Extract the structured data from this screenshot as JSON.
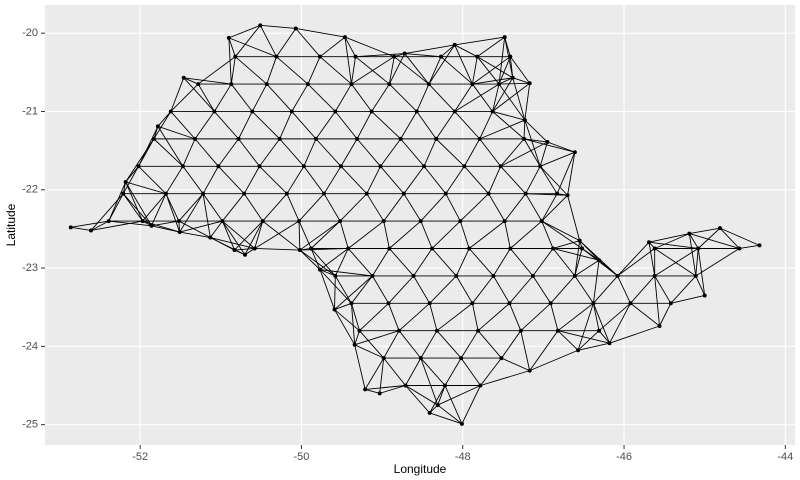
{
  "chart_data": {
    "type": "network",
    "x_label": "Longitude",
    "y_label": "Latitude",
    "xlim": [
      -53.18,
      -43.88
    ],
    "ylim": [
      -25.26,
      -19.64
    ],
    "xticks": [
      -52,
      -50,
      -48,
      -46,
      -44
    ],
    "yticks": [
      -25,
      -24,
      -23,
      -22,
      -21,
      -20
    ],
    "grid": true,
    "color": "#000000",
    "x": [
      -52.86,
      -52.61,
      -52.39,
      -52.18,
      -51.78,
      -51.46,
      -50.9,
      -50.51,
      -50.07,
      -49.46,
      -48.72,
      -48.1,
      -47.48,
      -47.38,
      -47.17,
      -47.23,
      -46.95,
      -46.61,
      -46.7,
      -46.55,
      -46.31,
      -45.69,
      -45.19,
      -44.81,
      -44.32,
      -44.57,
      -45.0,
      -45.56,
      -46.18,
      -46.57,
      -47.17,
      -48.01,
      -48.41,
      -49.03,
      -49.21,
      -49.34,
      -49.59,
      -49.77,
      -50.02,
      -50.7,
      -50.83,
      -51.13,
      -51.51,
      -51.86,
      -50.82,
      -50.31,
      -49.77,
      -49.33,
      -48.85,
      -48.27,
      -47.82,
      -47.41,
      -51.28,
      -50.87,
      -50.43,
      -49.92,
      -49.38,
      -48.91,
      -48.42,
      -47.88,
      -47.55,
      -51.62,
      -51.08,
      -50.61,
      -50.12,
      -49.58,
      -49.13,
      -48.57,
      -48.1,
      -47.63,
      -51.83,
      -51.32,
      -50.78,
      -50.27,
      -49.82,
      -49.31,
      -48.77,
      -48.33,
      -47.79,
      -47.24,
      -52.02,
      -51.47,
      -51.03,
      -50.52,
      -49.97,
      -49.51,
      -49.02,
      -48.48,
      -47.98,
      -47.53,
      -47.04,
      -52.21,
      -51.68,
      -51.22,
      -50.71,
      -50.18,
      -49.72,
      -49.19,
      -48.73,
      -48.21,
      -47.68,
      -47.22,
      -46.83,
      -51.97,
      -51.52,
      -50.98,
      -50.48,
      -50.03,
      -49.52,
      -48.98,
      -48.52,
      -48.03,
      -47.48,
      -47.02,
      -50.58,
      -49.88,
      -49.42,
      -48.91,
      -48.38,
      -47.92,
      -47.41,
      -46.88,
      -46.52,
      -45.62,
      -45.08,
      -49.58,
      -49.12,
      -48.61,
      -48.08,
      -47.62,
      -47.13,
      -46.61,
      -46.08,
      -45.62,
      -45.11,
      -49.38,
      -48.92,
      -48.41,
      -47.88,
      -47.42,
      -46.91,
      -46.38,
      -45.92,
      -45.42,
      -49.28,
      -48.79,
      -48.32,
      -47.81,
      -47.28,
      -46.82,
      -46.31,
      -48.98,
      -48.52,
      -48.02,
      -47.52,
      -48.71,
      -48.22,
      -47.78,
      -48.31
    ],
    "y": [
      -22.48,
      -22.52,
      -22.4,
      -21.9,
      -21.19,
      -20.57,
      -20.06,
      -19.9,
      -19.94,
      -20.05,
      -20.26,
      -20.15,
      -20.05,
      -20.57,
      -20.64,
      -21.11,
      -21.39,
      -21.52,
      -22.07,
      -22.65,
      -22.9,
      -22.67,
      -22.56,
      -22.49,
      -22.71,
      -22.75,
      -23.35,
      -23.74,
      -23.96,
      -24.05,
      -24.31,
      -24.99,
      -24.85,
      -24.6,
      -24.55,
      -23.98,
      -23.53,
      -23.02,
      -22.77,
      -22.83,
      -22.77,
      -22.61,
      -22.54,
      -22.46,
      -20.3,
      -20.3,
      -20.3,
      -20.3,
      -20.3,
      -20.3,
      -20.3,
      -20.3,
      -20.65,
      -20.65,
      -20.65,
      -20.65,
      -20.65,
      -20.65,
      -20.65,
      -20.65,
      -20.65,
      -21.0,
      -21.0,
      -21.0,
      -21.0,
      -21.0,
      -21.0,
      -21.0,
      -21.0,
      -21.0,
      -21.35,
      -21.35,
      -21.35,
      -21.35,
      -21.35,
      -21.35,
      -21.35,
      -21.35,
      -21.35,
      -21.35,
      -21.7,
      -21.7,
      -21.7,
      -21.7,
      -21.7,
      -21.7,
      -21.7,
      -21.7,
      -21.7,
      -21.7,
      -21.7,
      -22.05,
      -22.05,
      -22.05,
      -22.05,
      -22.05,
      -22.05,
      -22.05,
      -22.05,
      -22.05,
      -22.05,
      -22.05,
      -22.05,
      -22.4,
      -22.4,
      -22.4,
      -22.4,
      -22.4,
      -22.4,
      -22.4,
      -22.4,
      -22.4,
      -22.4,
      -22.4,
      -22.75,
      -22.75,
      -22.75,
      -22.75,
      -22.75,
      -22.75,
      -22.75,
      -22.75,
      -22.75,
      -22.75,
      -22.75,
      -23.1,
      -23.1,
      -23.1,
      -23.1,
      -23.1,
      -23.1,
      -23.1,
      -23.1,
      -23.1,
      -23.1,
      -23.45,
      -23.45,
      -23.45,
      -23.45,
      -23.45,
      -23.45,
      -23.45,
      -23.45,
      -23.45,
      -23.8,
      -23.8,
      -23.8,
      -23.8,
      -23.8,
      -23.8,
      -23.8,
      -24.15,
      -24.15,
      -24.15,
      -24.15,
      -24.5,
      -24.5,
      -24.5,
      -24.75
    ]
  }
}
